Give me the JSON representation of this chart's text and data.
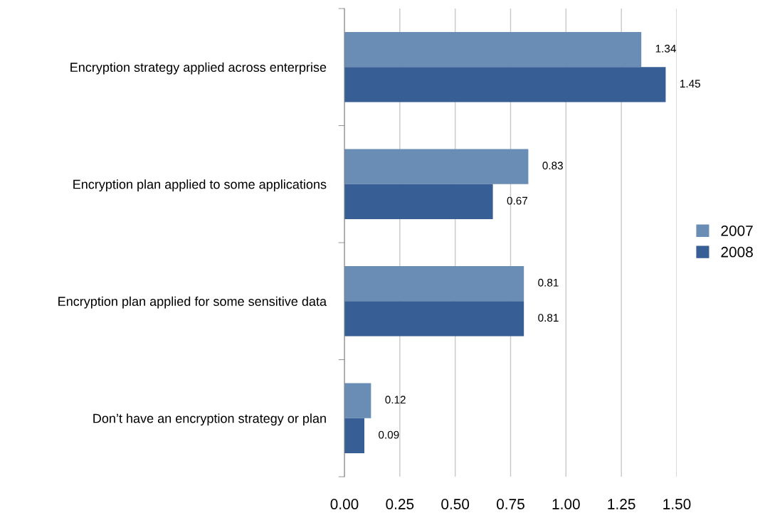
{
  "chart_data": {
    "type": "bar",
    "orientation": "horizontal",
    "categories": [
      "Encryption strategy applied across enterprise",
      "Encryption plan applied to some applications",
      "Encryption plan applied for some sensitive data",
      "Don’t have an encryption strategy or plan"
    ],
    "series": [
      {
        "name": "2007",
        "color": "#6a8db5",
        "values": [
          1.34,
          0.83,
          0.81,
          0.12
        ]
      },
      {
        "name": "2008",
        "color": "#375f96",
        "values": [
          1.45,
          0.67,
          0.81,
          0.09
        ]
      }
    ],
    "xlim": [
      0,
      1.5
    ],
    "xticks": [
      {
        "value": 0,
        "label": "0.00"
      },
      {
        "value": 0.25,
        "label": "0.25"
      },
      {
        "value": 0.5,
        "label": "0.50"
      },
      {
        "value": 0.75,
        "label": "0.75"
      },
      {
        "value": 1.0,
        "label": "1.00"
      },
      {
        "value": 1.25,
        "label": "1.25"
      },
      {
        "value": 1.5,
        "label": "1.50"
      }
    ],
    "grid": "x",
    "legend": "right",
    "data_labels": true
  }
}
